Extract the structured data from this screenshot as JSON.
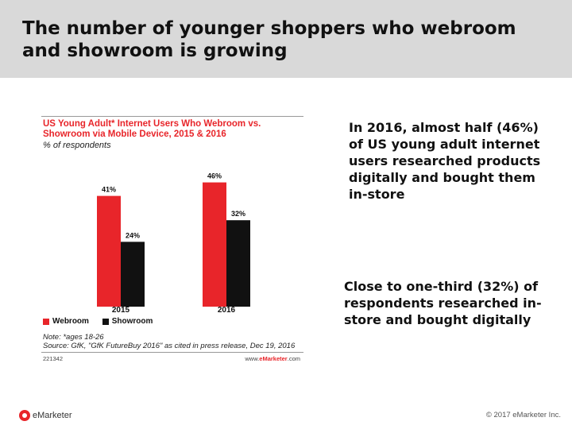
{
  "slide": {
    "title": "The number of younger shoppers who webroom and showroom is growing"
  },
  "chart": {
    "title": "US Young Adult* Internet Users Who Webroom vs. Showroom via Mobile Device, 2015 & 2016",
    "subtitle": "% of respondents",
    "note_line1": "Note: *ages 18-26",
    "note_line2": "Source: GfK, \"GfK FutureBuy 2016\" as cited in press release, Dec 19, 2016",
    "id": "221342",
    "site_prefix": "www.",
    "site_brand": "eMarketer",
    "site_suffix": ".com"
  },
  "chart_data": {
    "type": "bar",
    "title": "US Young Adult* Internet Users Who Webroom vs. Showroom via Mobile Device, 2015 & 2016",
    "subtitle": "% of respondents",
    "categories": [
      "2015",
      "2016"
    ],
    "series": [
      {
        "name": "Webroom",
        "values": [
          41,
          46
        ],
        "color": "#e8252a"
      },
      {
        "name": "Showroom",
        "values": [
          24,
          32
        ],
        "color": "#111111"
      }
    ],
    "ylim": [
      0,
      50
    ],
    "grid": false,
    "legend_position": "bottom-left",
    "label_suffix": "%"
  },
  "callouts": {
    "first": "In 2016, almost half (46%) of US young adult internet users researched products digitally and bought them in-store",
    "second": "Close to one-third (32%) of respondents researched in-store and bought digitally"
  },
  "footer": {
    "logo_text": "eMarketer",
    "copyright": "© 2017 eMarketer Inc."
  },
  "colors": {
    "accent": "#e8252a",
    "header_band": "#d9d9d9"
  }
}
